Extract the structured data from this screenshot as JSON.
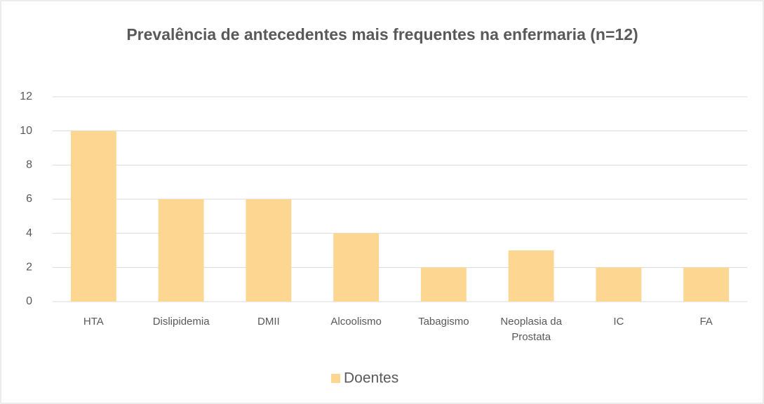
{
  "chart_data": {
    "type": "bar",
    "title": "Prevalência de antecedentes mais frequentes na enfermaria (n=12)",
    "categories": [
      "HTA",
      "Dislipidemia",
      "DMII",
      "Alcoolismo",
      "Tabagismo",
      "Neoplasia da Prostata",
      "IC",
      "FA"
    ],
    "series": [
      {
        "name": "Doentes",
        "color": "#fdd792",
        "values": [
          10,
          6,
          6,
          4,
          2,
          3,
          2,
          2
        ]
      }
    ],
    "ylim": [
      0,
      12
    ],
    "yticks": [
      0,
      2,
      4,
      6,
      8,
      10,
      12
    ],
    "grid": true,
    "legend": "bottom"
  }
}
